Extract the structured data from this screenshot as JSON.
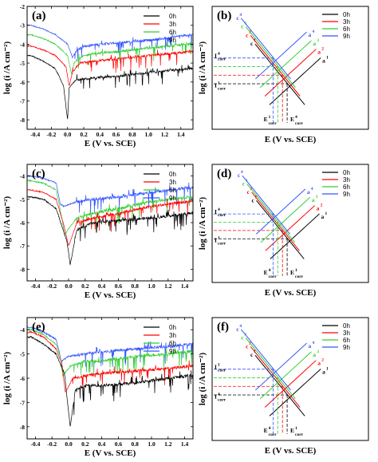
{
  "figure": {
    "panels": [
      {
        "id": "a",
        "label": "(a)"
      },
      {
        "id": "b",
        "label": "(b)"
      },
      {
        "id": "c",
        "label": "(c)"
      },
      {
        "id": "d",
        "label": "(d)"
      },
      {
        "id": "e",
        "label": "(e)"
      },
      {
        "id": "f",
        "label": "(f)"
      }
    ],
    "xlabel": "E (V vs. SCE)",
    "ylabel": "log (i /A cm⁻²)",
    "legend": [
      "0h",
      "3h",
      "6h",
      "9h"
    ],
    "series_colors": {
      "0h": "#000000",
      "3h": "#ff0000",
      "6h": "#33cc33",
      "9h": "#3355ff"
    },
    "schematic_label_order": {
      "b": "black-red-green-blue",
      "d": "black-red-green-blue",
      "f": "black-red-green-blue"
    },
    "schematic_markers": {
      "c": "c",
      "a": "a",
      "i": "i",
      "corr": "corr",
      "E": "E"
    }
  },
  "chart_data": [
    {
      "panel": "a",
      "type": "line",
      "title": "",
      "xlabel": "E (V vs. SCE)",
      "ylabel": "log (i /A cm⁻²)",
      "xlim": [
        -0.5,
        1.55
      ],
      "ylim": [
        -8.5,
        -2
      ],
      "xticks": [
        "-0.4",
        "-0.2",
        "0.0",
        "0.2",
        "0.4",
        "0.6",
        "0.8",
        "1.0",
        "1.2",
        "1.4"
      ],
      "yticks": [
        "-8",
        "-7",
        "-6",
        "-5",
        "-4",
        "-3",
        "-2"
      ],
      "legend_position": "top-right",
      "series": [
        {
          "name": "0h",
          "color": "#000000",
          "x": [
            -0.45,
            -0.3,
            -0.15,
            -0.05,
            0.0,
            0.02,
            0.1,
            0.3,
            0.6,
            1.0,
            1.5
          ],
          "y": [
            -4.6,
            -4.9,
            -5.3,
            -6.2,
            -8.0,
            -6.3,
            -5.9,
            -5.8,
            -5.7,
            -5.5,
            -5.3
          ]
        },
        {
          "name": "3h",
          "color": "#ff0000",
          "x": [
            -0.45,
            -0.3,
            -0.15,
            -0.02,
            0.02,
            0.06,
            0.15,
            0.3,
            0.6,
            1.0,
            1.5
          ],
          "y": [
            -4.1,
            -4.3,
            -4.6,
            -5.2,
            -6.2,
            -5.5,
            -5.0,
            -4.9,
            -4.8,
            -4.6,
            -4.4
          ]
        },
        {
          "name": "6h",
          "color": "#33cc33",
          "x": [
            -0.45,
            -0.3,
            -0.15,
            0.0,
            0.05,
            0.08,
            0.15,
            0.3,
            0.6,
            1.0,
            1.5
          ],
          "y": [
            -3.5,
            -3.7,
            -4.0,
            -4.6,
            -5.6,
            -5.0,
            -4.7,
            -4.5,
            -4.4,
            -4.2,
            -4.0
          ]
        },
        {
          "name": "9h",
          "color": "#3355ff",
          "x": [
            -0.45,
            -0.3,
            -0.15,
            0.0,
            0.06,
            0.1,
            0.2,
            0.4,
            0.7,
            1.0,
            1.5
          ],
          "y": [
            -3.0,
            -3.2,
            -3.5,
            -4.0,
            -4.7,
            -4.4,
            -4.1,
            -4.0,
            -3.9,
            -3.8,
            -3.5
          ]
        }
      ]
    },
    {
      "panel": "c",
      "type": "line",
      "title": "",
      "xlabel": "E (V vs. SCE)",
      "ylabel": "log (i /A cm⁻²)",
      "xlim": [
        -0.5,
        1.5
      ],
      "ylim": [
        -8.5,
        -3.5
      ],
      "xticks": [
        "-0.4",
        "-0.2",
        "0.0",
        "0.2",
        "0.4",
        "0.6",
        "0.8",
        "1.0",
        "1.2",
        "1.4"
      ],
      "yticks": [
        "-8",
        "-7",
        "-6",
        "-5",
        "-4"
      ],
      "legend_position": "top-right",
      "series": [
        {
          "name": "0h",
          "color": "#000000",
          "x": [
            -0.45,
            -0.3,
            -0.15,
            -0.02,
            0.02,
            0.1,
            0.3,
            0.6,
            1.0,
            1.45
          ],
          "y": [
            -4.9,
            -5.0,
            -5.4,
            -6.8,
            -7.8,
            -6.3,
            -6.0,
            -5.9,
            -5.8,
            -5.6
          ]
        },
        {
          "name": "3h",
          "color": "#ff0000",
          "x": [
            -0.45,
            -0.3,
            -0.15,
            -0.05,
            0.0,
            0.1,
            0.3,
            0.6,
            1.0,
            1.45
          ],
          "y": [
            -4.6,
            -4.7,
            -5.0,
            -6.2,
            -7.0,
            -6.0,
            -5.8,
            -5.6,
            -5.3,
            -5.1
          ]
        },
        {
          "name": "6h",
          "color": "#33cc33",
          "x": [
            -0.45,
            -0.3,
            -0.15,
            -0.08,
            -0.05,
            0.1,
            0.3,
            0.6,
            1.0,
            1.45
          ],
          "y": [
            -4.2,
            -4.3,
            -4.6,
            -5.8,
            -6.5,
            -5.8,
            -5.6,
            -5.4,
            -5.1,
            -4.9
          ]
        },
        {
          "name": "9h",
          "color": "#3355ff",
          "x": [
            -0.45,
            -0.3,
            -0.15,
            -0.1,
            -0.06,
            0.1,
            0.3,
            0.6,
            1.0,
            1.45
          ],
          "y": [
            -4.0,
            -4.1,
            -4.3,
            -5.2,
            -5.3,
            -5.1,
            -5.0,
            -4.9,
            -4.7,
            -4.5
          ]
        }
      ]
    },
    {
      "panel": "e",
      "type": "line",
      "title": "",
      "xlabel": "E (V vs. SCE)",
      "ylabel": "log (i /A cm⁻²)",
      "xlim": [
        -0.5,
        1.5
      ],
      "ylim": [
        -8.5,
        -3.5
      ],
      "xticks": [
        "-0.4",
        "-0.2",
        "0.0",
        "0.2",
        "0.4",
        "0.6",
        "0.8",
        "1.0",
        "1.2",
        "1.4"
      ],
      "yticks": [
        "-8",
        "-7",
        "-6",
        "-5",
        "-4"
      ],
      "legend_position": "top-right",
      "series": [
        {
          "name": "0h",
          "color": "#000000",
          "x": [
            -0.45,
            -0.3,
            -0.15,
            -0.05,
            0.02,
            0.08,
            0.2,
            0.4,
            0.8,
            1.2,
            1.45
          ],
          "y": [
            -4.3,
            -4.6,
            -5.0,
            -5.8,
            -8.0,
            -6.5,
            -6.3,
            -6.3,
            -6.2,
            -6.0,
            -5.9
          ]
        },
        {
          "name": "3h",
          "color": "#ff0000",
          "x": [
            -0.45,
            -0.3,
            -0.15,
            -0.08,
            -0.04,
            0.05,
            0.2,
            0.4,
            0.8,
            1.2,
            1.45
          ],
          "y": [
            -4.1,
            -4.3,
            -4.8,
            -5.4,
            -6.6,
            -6.0,
            -5.9,
            -5.8,
            -5.7,
            -5.6,
            -5.5
          ]
        },
        {
          "name": "6h",
          "color": "#33cc33",
          "x": [
            -0.45,
            -0.3,
            -0.15,
            -0.1,
            -0.07,
            0.02,
            0.2,
            0.4,
            0.8,
            1.2,
            1.45
          ],
          "y": [
            -4.0,
            -4.2,
            -4.6,
            -5.1,
            -5.9,
            -5.5,
            -5.3,
            -5.3,
            -5.1,
            -5.0,
            -4.9
          ]
        },
        {
          "name": "9h",
          "color": "#3355ff",
          "x": [
            -0.45,
            -0.3,
            -0.15,
            -0.12,
            -0.09,
            0.0,
            0.2,
            0.4,
            0.8,
            1.2,
            1.45
          ],
          "y": [
            -3.9,
            -4.1,
            -4.4,
            -4.8,
            -5.3,
            -5.1,
            -5.0,
            -4.9,
            -4.8,
            -4.7,
            -4.6
          ]
        }
      ]
    },
    {
      "panel": "b",
      "type": "line",
      "title": "",
      "xlabel": "E (V vs. SCE)",
      "ylabel": "log (i /A cm⁻²)",
      "legend_position": "top-right",
      "schematic": true,
      "series": [
        {
          "name": "0h",
          "color": "#000000",
          "cathodic_label": "c",
          "cathodic_sup": "1",
          "anodic_label": "a",
          "anodic_sup": "1",
          "x": [
            0,
            1
          ],
          "y": [
            0,
            1
          ]
        },
        {
          "name": "3h",
          "color": "#ff0000",
          "cathodic_label": "c",
          "cathodic_sup": "2",
          "anodic_label": "a",
          "anodic_sup": "2",
          "x": [
            0,
            1
          ],
          "y": [
            0,
            1
          ]
        },
        {
          "name": "6h",
          "color": "#33cc33",
          "cathodic_label": "c",
          "cathodic_sup": "3",
          "anodic_label": "a",
          "anodic_sup": "3",
          "x": [
            0,
            1
          ],
          "y": [
            0,
            1
          ]
        },
        {
          "name": "9h",
          "color": "#3355ff",
          "cathodic_label": "c",
          "cathodic_sup": "4",
          "anodic_label": "a",
          "anodic_sup": "4",
          "x": [
            0,
            1
          ],
          "y": [
            0,
            1
          ]
        }
      ],
      "i_labels": [
        {
          "text": "I",
          "sup": "1",
          "sub": "corr"
        },
        {
          "text": "I",
          "sup": "4",
          "sub": "corr"
        }
      ],
      "e_labels": [
        {
          "text": "E",
          "sup": "1",
          "sub": "corr"
        },
        {
          "text": "E",
          "sup": "4",
          "sub": "corr"
        }
      ]
    },
    {
      "panel": "d",
      "type": "line",
      "title": "",
      "xlabel": "E (V vs. SCE)",
      "ylabel": "log (i /A cm⁻²)",
      "legend_position": "top-right",
      "schematic": true,
      "series": [
        {
          "name": "0h",
          "color": "#000000",
          "cathodic_label": "c",
          "cathodic_sup": "1",
          "anodic_label": "a",
          "anodic_sup": "1",
          "x": [
            0,
            1
          ],
          "y": [
            0,
            1
          ]
        },
        {
          "name": "3h",
          "color": "#ff0000",
          "cathodic_label": "c",
          "cathodic_sup": "2",
          "anodic_label": "a",
          "anodic_sup": "2",
          "x": [
            0,
            1
          ],
          "y": [
            0,
            1
          ]
        },
        {
          "name": "6h",
          "color": "#33cc33",
          "cathodic_label": "c",
          "cathodic_sup": "3",
          "anodic_label": "a",
          "anodic_sup": "3",
          "x": [
            0,
            1
          ],
          "y": [
            0,
            1
          ]
        },
        {
          "name": "9h",
          "color": "#3355ff",
          "cathodic_label": "c",
          "cathodic_sup": "4",
          "anodic_label": "a",
          "anodic_sup": "4",
          "x": [
            0,
            1
          ],
          "y": [
            0,
            1
          ]
        }
      ],
      "i_labels": [
        {
          "text": "I",
          "sup": "1",
          "sub": "corr"
        },
        {
          "text": "I",
          "sup": "4",
          "sub": "corr"
        }
      ],
      "e_labels": [
        {
          "text": "E",
          "sup": "4",
          "sub": "corr"
        },
        {
          "text": "E",
          "sup": "1",
          "sub": "corr"
        }
      ]
    },
    {
      "panel": "f",
      "type": "line",
      "title": "",
      "xlabel": "E (V vs. SCE)",
      "ylabel": "log (i /A cm⁻²)",
      "legend_position": "top-right",
      "schematic": true,
      "series": [
        {
          "name": "0h",
          "color": "#000000",
          "cathodic_label": "c",
          "cathodic_sup": "1",
          "anodic_label": "a",
          "anodic_sup": "1",
          "x": [
            0,
            1
          ],
          "y": [
            0,
            1
          ]
        },
        {
          "name": "3h",
          "color": "#ff0000",
          "cathodic_label": "c",
          "cathodic_sup": "2",
          "anodic_label": "a",
          "anodic_sup": "2",
          "x": [
            0,
            1
          ],
          "y": [
            0,
            1
          ]
        },
        {
          "name": "6h",
          "color": "#33cc33",
          "cathodic_label": "c",
          "cathodic_sup": "3",
          "anodic_label": "a",
          "anodic_sup": "3",
          "x": [
            0,
            1
          ],
          "y": [
            0,
            1
          ]
        },
        {
          "name": "9h",
          "color": "#3355ff",
          "cathodic_label": "c",
          "cathodic_sup": "4",
          "anodic_label": "a",
          "anodic_sup": "4",
          "x": [
            0,
            1
          ],
          "y": [
            0,
            1
          ]
        }
      ],
      "i_labels": [
        {
          "text": "I",
          "sup": "4",
          "sub": "corr"
        },
        {
          "text": "I",
          "sup": "1",
          "sub": "corr"
        }
      ],
      "e_labels": [
        {
          "text": "E",
          "sup": "4",
          "sub": "corr"
        },
        {
          "text": "E",
          "sup": "1",
          "sub": "corr"
        }
      ]
    }
  ]
}
